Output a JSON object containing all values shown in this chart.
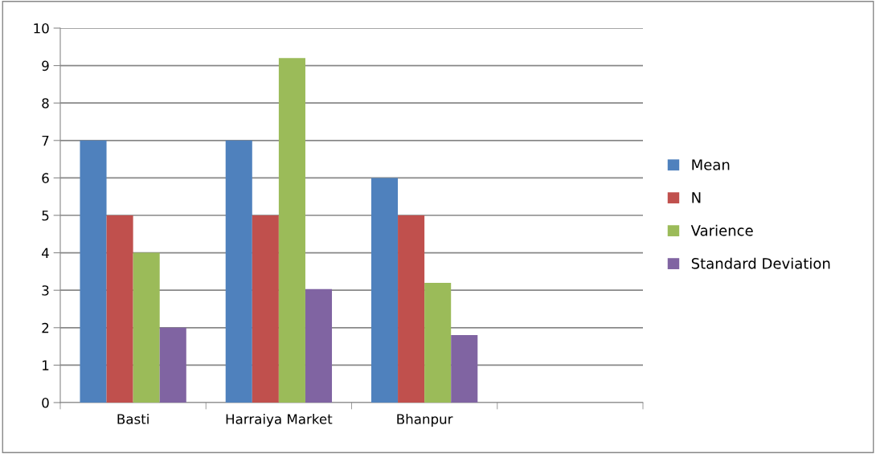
{
  "chart_data": {
    "type": "bar",
    "categories": [
      "Basti",
      "Harraiya Market",
      "Bhanpur",
      null
    ],
    "series": [
      {
        "name": "Mean",
        "color": "#4f81bd",
        "values": [
          7,
          7,
          6,
          null
        ]
      },
      {
        "name": "N",
        "color": "#c0504d",
        "values": [
          5,
          5,
          5,
          null
        ]
      },
      {
        "name": "Varience",
        "color": "#9bbb59",
        "values": [
          4,
          9.2,
          3.2,
          null
        ]
      },
      {
        "name": "Standard Deviation",
        "color": "#8064a2",
        "values": [
          2,
          3.03,
          1.8,
          null
        ]
      }
    ],
    "ylim": [
      0,
      10
    ],
    "yticks": [
      0,
      1,
      2,
      3,
      4,
      5,
      6,
      7,
      8,
      9,
      10
    ],
    "grid": "y",
    "legend": "right"
  }
}
